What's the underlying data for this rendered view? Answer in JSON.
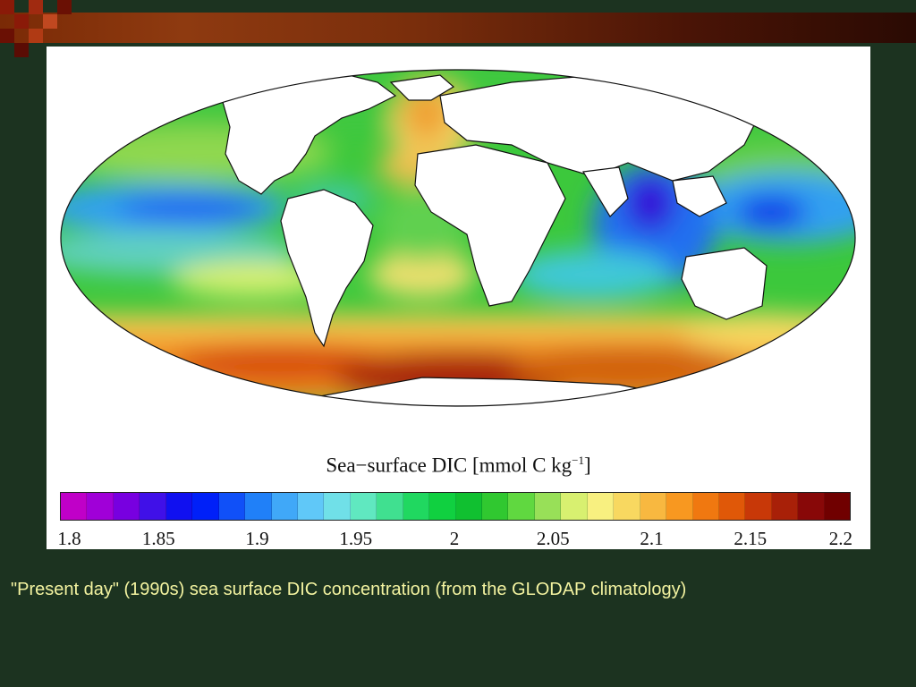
{
  "slide": {
    "caption": "\"Present day\" (1990s) sea surface DIC concentration (from the GLODAP climatology)",
    "colors": {
      "background": "#1c3320",
      "caption_text": "#f3f3a0",
      "top_bar": "#7a2a06"
    }
  },
  "figure": {
    "colorbar_title": "Sea−surface DIC [mmol C kg",
    "colorbar_title_exponent": "−1",
    "colorbar_title_close": "]",
    "projection": "Mollweide world map",
    "colorbar_range": [
      1.8,
      2.2
    ],
    "colorbar_ticks": [
      "1.8",
      "1.85",
      "1.9",
      "1.95",
      "2",
      "2.05",
      "2.1",
      "2.15",
      "2.2"
    ],
    "colorbar_colors": [
      "#c000c8",
      "#a000d8",
      "#7800e0",
      "#4010e8",
      "#1010f0",
      "#0020f8",
      "#1050f8",
      "#2080f8",
      "#40a8f8",
      "#60c8f8",
      "#70e0e8",
      "#60e8c0",
      "#40e090",
      "#20d860",
      "#10d040",
      "#10c030",
      "#30c830",
      "#60d840",
      "#98e058",
      "#d8f070",
      "#f8f080",
      "#f8d860",
      "#f8b840",
      "#f89820",
      "#f07810",
      "#e05808",
      "#c83808",
      "#a82008",
      "#880808",
      "#700000"
    ]
  }
}
